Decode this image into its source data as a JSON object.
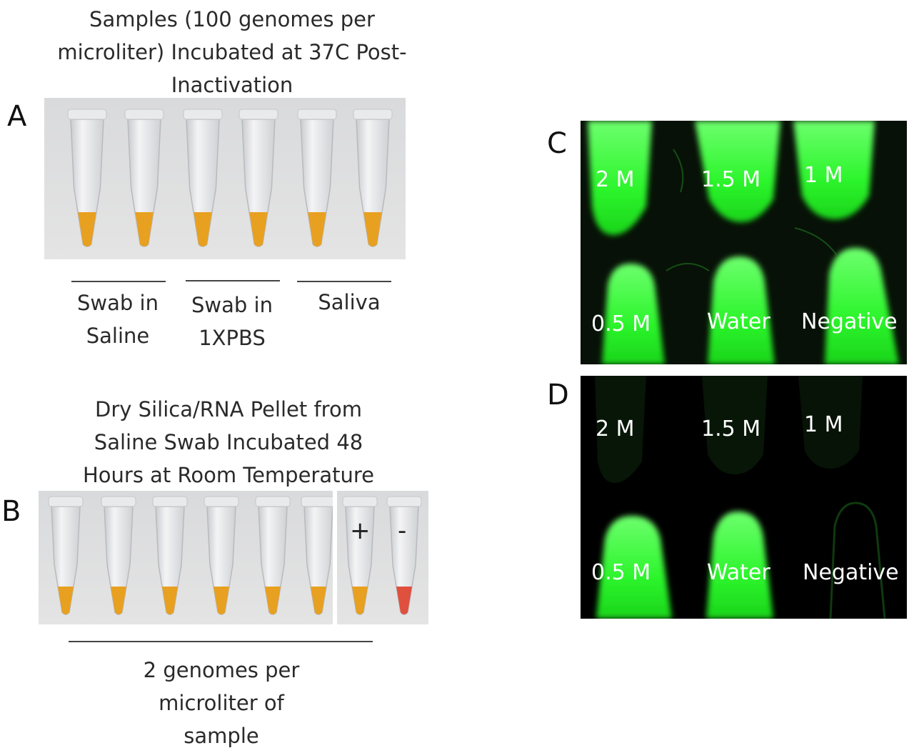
{
  "panel_a": {
    "letter": "A",
    "title": "Samples (100 genomes per microliter) Incubated at 37C Post-Inactivation",
    "title_lines": [
      "Samples (100 genomes per",
      "microliter) Incubated at 37C Post-",
      "Inactivation"
    ],
    "groups": [
      {
        "lines": [
          "Swab in",
          "Saline"
        ]
      },
      {
        "lines": [
          "Swab in",
          "1XPBS"
        ]
      },
      {
        "lines": [
          "Saliva"
        ]
      }
    ],
    "tube_color": "#e8a020"
  },
  "panel_b": {
    "letter": "B",
    "title_lines": [
      "Dry Silica/RNA Pellet from",
      "Saline Swab Incubated 48",
      "Hours at Room Temperature"
    ],
    "plus_label": "+",
    "minus_label": "-",
    "group_lines": [
      "2 genomes per",
      "microliter of",
      "sample"
    ],
    "tube_color": "#e8a020",
    "negative_color": "#e0503e"
  },
  "panel_c": {
    "letter": "C",
    "labels": [
      "2 M",
      "1.5 M",
      "1 M",
      "0.5 M",
      "Water",
      "Negative"
    ],
    "glow_color": "#2bff2b"
  },
  "panel_d": {
    "letter": "D",
    "labels": [
      "2 M",
      "1.5 M",
      "1 M",
      "0.5 M",
      "Water",
      "Negative"
    ],
    "glow_color": "#2bff2b"
  }
}
